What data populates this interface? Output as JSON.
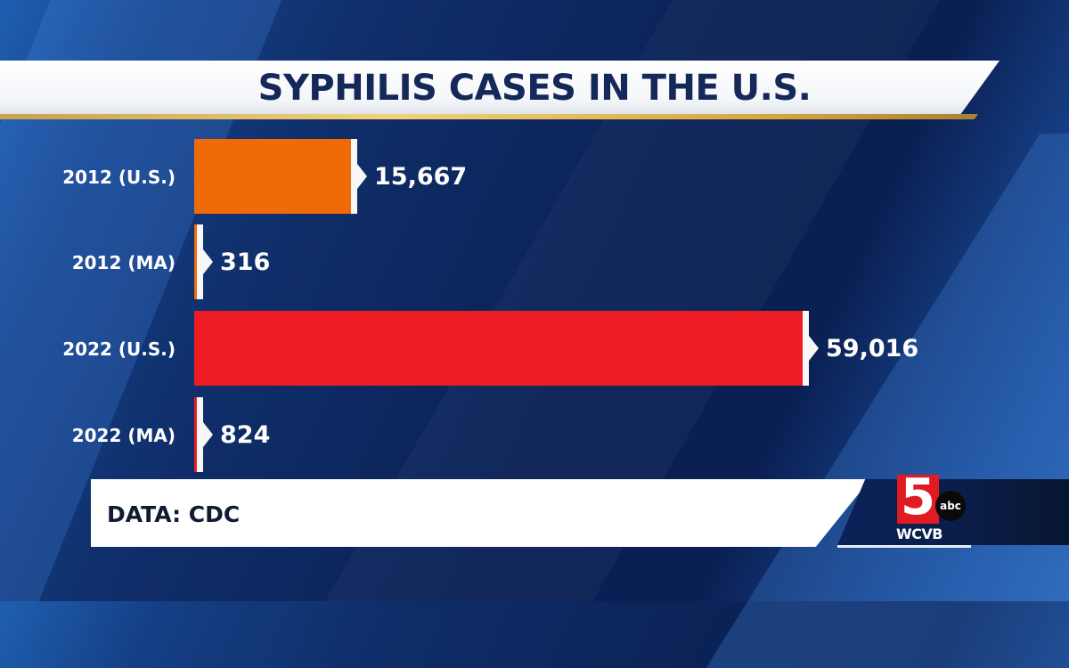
{
  "title": "SYPHILIS CASES IN THE U.S.",
  "source": "DATA: CDC",
  "station": {
    "channel_number": "5",
    "network": "abc",
    "call_sign": "WCVB"
  },
  "colors": {
    "bar_2012": "#f06a0a",
    "bar_2022": "#ed1c24",
    "title_text": "#15285a",
    "gold_accent": "#d4a53d",
    "background": "#0b2256"
  },
  "rows": [
    {
      "label": "2012 (U.S.)",
      "value_text": "15,667"
    },
    {
      "label": "2012 (MA)",
      "value_text": "316"
    },
    {
      "label": "2022 (U.S.)",
      "value_text": "59,016"
    },
    {
      "label": "2022 (MA)",
      "value_text": "824"
    }
  ],
  "chart_data": {
    "type": "bar",
    "orientation": "horizontal",
    "title": "SYPHILIS CASES IN THE U.S.",
    "categories": [
      "2012 (U.S.)",
      "2012 (MA)",
      "2022 (U.S.)",
      "2022 (MA)"
    ],
    "values": [
      15667,
      316,
      59016,
      824
    ],
    "bar_colors": [
      "#f06a0a",
      "#f06a0a",
      "#ed1c24",
      "#ed1c24"
    ],
    "data_labels": [
      "15,667",
      "316",
      "59,016",
      "824"
    ],
    "xlabel": "",
    "ylabel": "",
    "grid": false,
    "legend": null,
    "annotations": [
      "DATA: CDC"
    ]
  }
}
